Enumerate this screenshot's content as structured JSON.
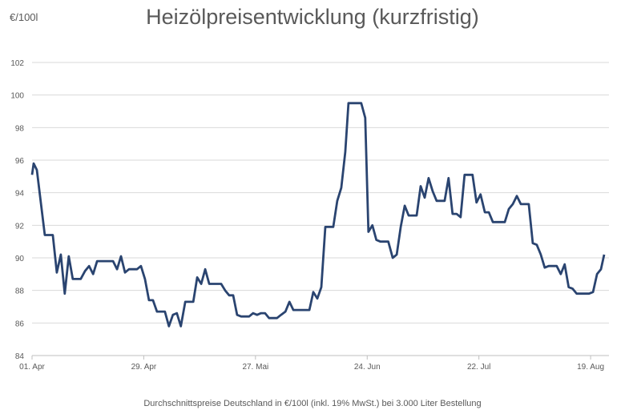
{
  "chart_data": {
    "type": "line",
    "title": "Heizölpreisentwicklung (kurzfristig)",
    "ylabel": "€/100l",
    "xlabel": "Durchschnittspreise Deutschland in €/100l (inkl. 19% MwSt.) bei 3.000 Liter Bestellung",
    "ylim": [
      84,
      102
    ],
    "yticks": [
      84,
      86,
      88,
      90,
      92,
      94,
      96,
      98,
      100,
      102
    ],
    "xlim": [
      0,
      144.6
    ],
    "xticks": [
      {
        "day": 0,
        "label": "01. Apr"
      },
      {
        "day": 28,
        "label": "29. Apr"
      },
      {
        "day": 56,
        "label": "27. Mai"
      },
      {
        "day": 84,
        "label": "24. Jun"
      },
      {
        "day": 112,
        "label": "22. Jul"
      },
      {
        "day": 140,
        "label": "19. Aug"
      }
    ],
    "grid": true,
    "color": "#2a4470",
    "series": [
      {
        "name": "Heizölpreis",
        "x": [
          0,
          0.4,
          1.2,
          3.2,
          5.2,
          6.2,
          7.2,
          8.2,
          9.2,
          10.2,
          12.2,
          13.3,
          14.3,
          15.3,
          16.3,
          20.3,
          21.3,
          22.3,
          23.3,
          24.3,
          26.3,
          27.3,
          28.3,
          29.3,
          30.3,
          31.3,
          33.3,
          34.3,
          35.3,
          36.3,
          37.3,
          38.4,
          40.4,
          41.4,
          42.4,
          43.4,
          44.4,
          47.4,
          48.4,
          49.4,
          50.4,
          51.4,
          52.4,
          54.4,
          55.4,
          56.4,
          57.4,
          58.4,
          59.4,
          61.4,
          62.4,
          63.5,
          64.5,
          65.5,
          69.5,
          70.5,
          71.5,
          72.5,
          73.5,
          75.5,
          76.5,
          77.5,
          78.5,
          79.3,
          82.5,
          83.5,
          84.3,
          85.3,
          86.3,
          87.3,
          89.3,
          90.4,
          91.4,
          92.4,
          93.4,
          94.4,
          96.4,
          97.4,
          98.4,
          99.4,
          100.4,
          101.4,
          103.4,
          104.4,
          105.4,
          106.4,
          107.4,
          108.4,
          110.4,
          111.4,
          112.4,
          113.5,
          114.5,
          115.5,
          117.5,
          118.5,
          119.5,
          120.5,
          121.5,
          122.5,
          124.5,
          125.5,
          126.5,
          127.5,
          128.5,
          129.5,
          131.5,
          132.5,
          133.5,
          134.5,
          135.5,
          136.5,
          139.6,
          140.6,
          141.6,
          142.6,
          143.4
        ],
        "y": [
          95.1,
          95.8,
          95.4,
          91.4,
          91.4,
          89.1,
          90.2,
          87.8,
          90.1,
          88.7,
          88.7,
          89.2,
          89.5,
          89.0,
          89.8,
          89.8,
          89.3,
          90.1,
          89.1,
          89.3,
          89.3,
          89.5,
          88.7,
          87.4,
          87.4,
          86.7,
          86.7,
          85.8,
          86.5,
          86.6,
          85.8,
          87.3,
          87.3,
          88.8,
          88.4,
          89.3,
          88.4,
          88.4,
          88.0,
          87.7,
          87.7,
          86.5,
          86.4,
          86.4,
          86.6,
          86.5,
          86.6,
          86.6,
          86.3,
          86.3,
          86.5,
          86.7,
          87.3,
          86.8,
          86.8,
          87.9,
          87.5,
          88.2,
          91.9,
          91.9,
          93.5,
          94.3,
          96.5,
          99.5,
          99.5,
          98.6,
          91.6,
          92.0,
          91.1,
          91.0,
          91.0,
          90.0,
          90.2,
          91.9,
          93.2,
          92.6,
          92.6,
          94.4,
          93.7,
          94.9,
          94.1,
          93.5,
          93.5,
          94.9,
          92.7,
          92.7,
          92.5,
          95.1,
          95.1,
          93.4,
          93.9,
          92.8,
          92.8,
          92.2,
          92.2,
          92.2,
          93.0,
          93.3,
          93.8,
          93.3,
          93.3,
          90.9,
          90.8,
          90.2,
          89.4,
          89.5,
          89.5,
          89.0,
          89.6,
          88.2,
          88.1,
          87.8,
          87.8,
          87.9,
          89.0,
          89.3,
          90.2
        ]
      }
    ]
  }
}
